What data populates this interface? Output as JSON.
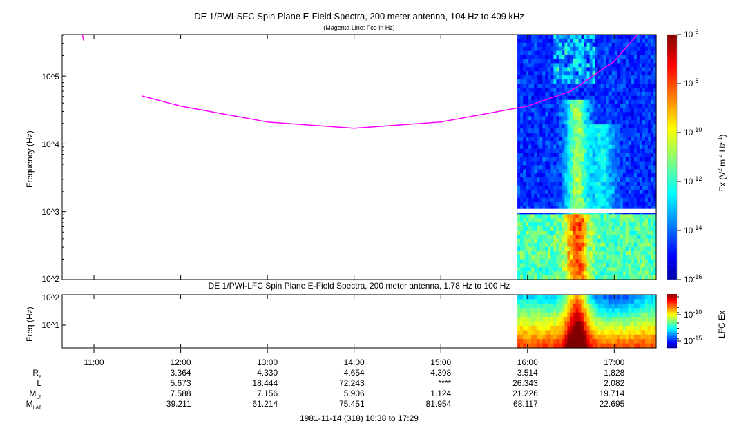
{
  "chart_data": [
    {
      "type": "heatmap",
      "title": "DE 1/PWI-SFC  Spin Plane E-Field Spectra, 200 meter antenna, 104 Hz to 409 kHz",
      "subtitle": "(Magenta Line: Fce in Hz)",
      "ylabel": "Frequency (Hz)",
      "yscale": "log",
      "ylim": [
        100,
        409000
      ],
      "y_ticks": [
        "10^2",
        "10^3",
        "10^4",
        "10^5"
      ],
      "colorbar": {
        "label": "Ex (V^2 m^-2 Hz^-1)",
        "range": [
          1e-16,
          1e-06
        ],
        "ticks": [
          "10^-6",
          "10^-8",
          "10^-10",
          "10^-12",
          "10^-14",
          "10^-16"
        ]
      },
      "data_start_time": "15:53",
      "fce_line": {
        "name": "Fce",
        "color": "#ff00ff",
        "points": [
          [
            "10:52",
            409000
          ],
          [
            "10:53",
            330000
          ],
          [
            "11:33",
            51000
          ],
          [
            "12:00",
            36000
          ],
          [
            "13:00",
            21000
          ],
          [
            "14:00",
            17000
          ],
          [
            "15:00",
            21000
          ],
          [
            "16:00",
            36000
          ],
          [
            "16:30",
            60000
          ],
          [
            "17:00",
            165000
          ],
          [
            "17:16",
            409000
          ]
        ]
      }
    },
    {
      "type": "heatmap",
      "title": "DE 1/PWI-LFC  Spin Plane E-Field Spectra, 200 meter antenna, 1.78 Hz to 100 Hz",
      "ylabel": "Freq (Hz)",
      "yscale": "log",
      "ylim": [
        1.78,
        100
      ],
      "y_ticks": [
        "10^1",
        "10^2"
      ],
      "colorbar": {
        "label": "LFC Ex",
        "ticks": [
          "10^-10",
          "10^-15"
        ]
      },
      "data_start_time": "15:53"
    }
  ],
  "xaxis": {
    "ticks": [
      "11:00",
      "12:00",
      "13:00",
      "14:00",
      "15:00",
      "16:00",
      "17:00"
    ],
    "start": "10:38",
    "end": "17:29"
  },
  "ephemeris": {
    "labels": {
      "re": "R",
      "re_sub": "e",
      "l": "L",
      "mlt": "M",
      "mlt_sub": "LT",
      "mlat": "M",
      "mlat_sub": "LAT"
    },
    "re": [
      "3.364",
      "4.330",
      "4.654",
      "4.398",
      "3.514",
      "1.828"
    ],
    "l": [
      "5.673",
      "18.444",
      "72.243",
      "****",
      "26.343",
      "2.082"
    ],
    "mlt": [
      "7.588",
      "7.156",
      "5.906",
      "1.124",
      "21.226",
      "19.714"
    ],
    "mlat": [
      "39.211",
      "61.214",
      "75.451",
      "81.954",
      "68.117",
      "22.695"
    ]
  },
  "footer": "1981-11-14 (318) 10:38 to 17:29",
  "colors": {
    "fce": "#ff00ff",
    "background": "#ffffff"
  }
}
